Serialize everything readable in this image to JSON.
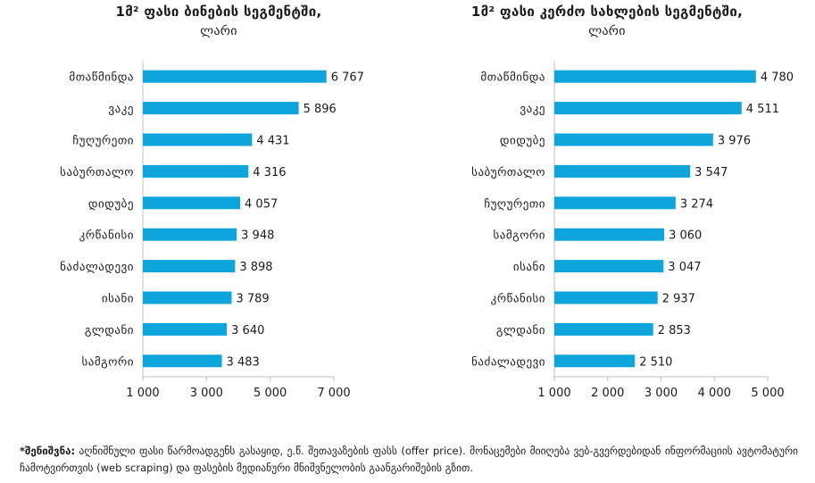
{
  "chart_data": [
    {
      "type": "bar",
      "orientation": "horizontal",
      "title": "1მ² ფასი ბინების სეგმენტში,",
      "unit": "ლარი",
      "categories": [
        "მთაწმინდა",
        "ვაკე",
        "ჩუღურეთი",
        "საბურთალო",
        "დიდუბე",
        "კრწანისი",
        "ნაძალადევი",
        "ისანი",
        "გლდანი",
        "სამგორი"
      ],
      "values": [
        6767,
        5896,
        4431,
        4316,
        4057,
        3948,
        3898,
        3789,
        3640,
        3483
      ],
      "value_labels": [
        "6 767",
        "5 896",
        "4 431",
        "4 316",
        "4 057",
        "3 948",
        "3 898",
        "3 789",
        "3 640",
        "3 483"
      ],
      "xlim": [
        1000,
        7000
      ],
      "ticks": [
        1000,
        3000,
        5000,
        7000
      ],
      "tick_labels": [
        "1 000",
        "3 000",
        "5 000",
        "7 000"
      ],
      "bar_color": "#0ea5dc"
    },
    {
      "type": "bar",
      "orientation": "horizontal",
      "title": "1მ² ფასი კერძო სახლების სეგმენტში,",
      "unit": "ლარი",
      "categories": [
        "მთაწმინდა",
        "ვაკე",
        "დიდუბე",
        "საბურთალო",
        "ჩუღურეთი",
        "სამგორი",
        "ისანი",
        "კრწანისი",
        "გლდანი",
        "ნაძალადევი"
      ],
      "values": [
        4780,
        4511,
        3976,
        3547,
        3274,
        3060,
        3047,
        2937,
        2853,
        2510
      ],
      "value_labels": [
        "4 780",
        "4 511",
        "3 976",
        "3 547",
        "3 274",
        "3 060",
        "3 047",
        "2 937",
        "2 853",
        "2 510"
      ],
      "xlim": [
        1000,
        5000
      ],
      "ticks": [
        1000,
        2000,
        3000,
        4000,
        5000
      ],
      "tick_labels": [
        "1 000",
        "2 000",
        "3 000",
        "4 000",
        "5 000"
      ],
      "bar_color": "#0ea5dc"
    }
  ],
  "footnote": {
    "label": "*შენიშვნა:",
    "text": "აღნიშნული ფასი წარმოადგენს გასაყიდ, ე.წ. შეთავაზების ფასს (offer price). მონაცემები მიიღება ვებ-გვერდებიდან ინფორმაციის ავტომატური ჩამოტვირთვის (web scraping) და ფასების მედიანური მნიშვნელობის გაანგარიშების გზით."
  }
}
